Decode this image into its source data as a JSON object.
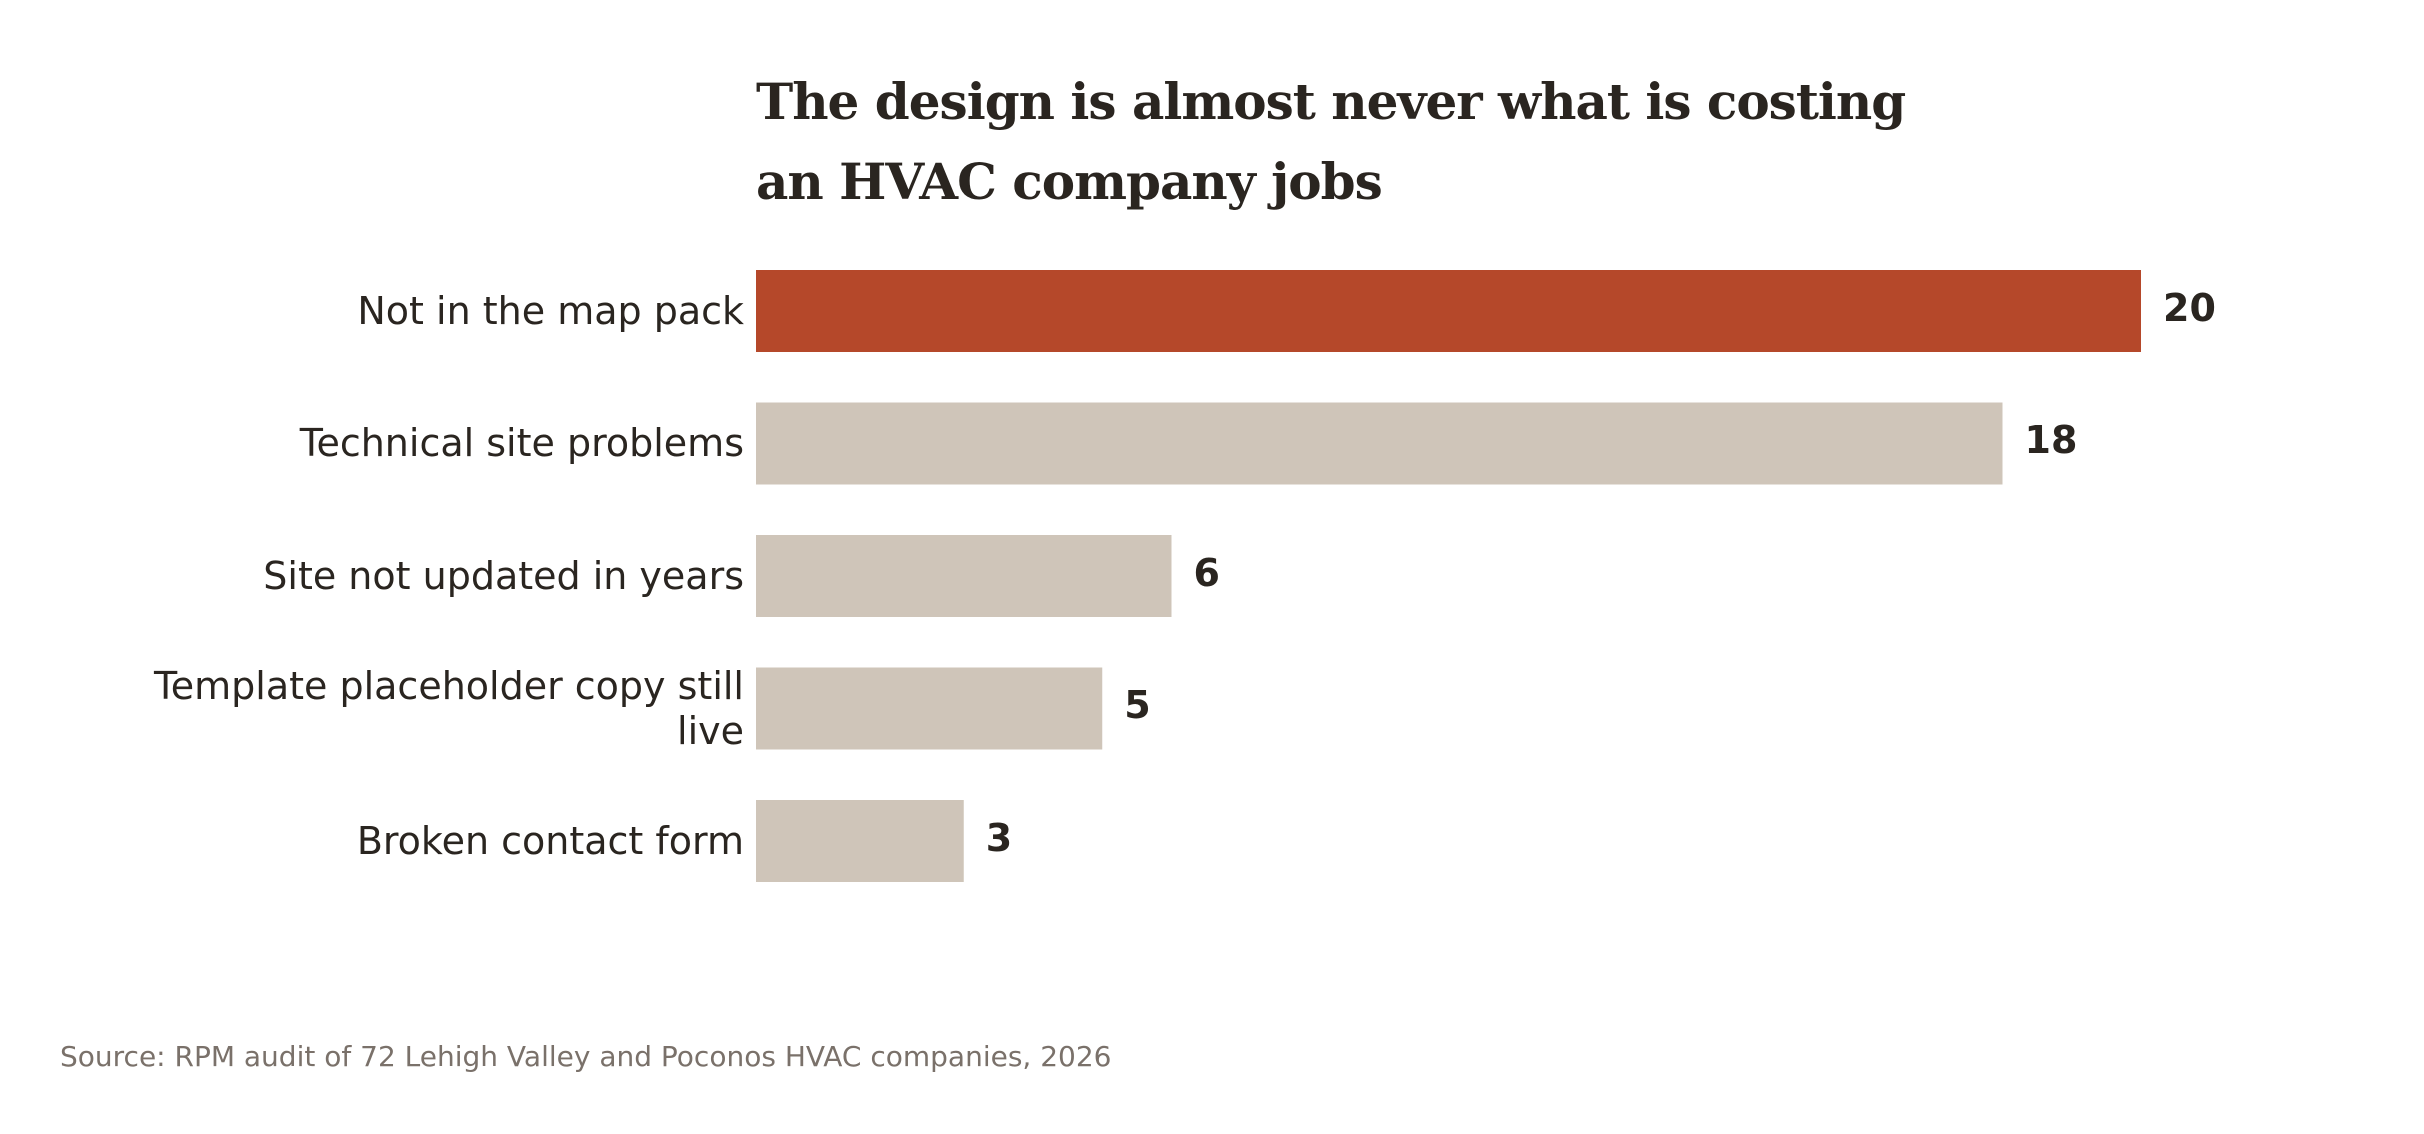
{
  "chart_data": {
    "type": "bar",
    "orientation": "horizontal",
    "title": "The design is almost never what is costing an HVAC company jobs",
    "categories": [
      "Not in the map pack",
      "Technical site problems",
      "Site not updated in years",
      "Template placeholder copy still live",
      "Broken contact form"
    ],
    "values": [
      20,
      18,
      6,
      5,
      3
    ],
    "colors": [
      "#b5482a",
      "#cfc5b9",
      "#cfc5b9",
      "#cfc5b9",
      "#cfc5b9"
    ],
    "xlim": [
      0,
      20
    ],
    "source": "Source: RPM audit of 72 Lehigh Valley and Poconos HVAC companies, 2026"
  }
}
